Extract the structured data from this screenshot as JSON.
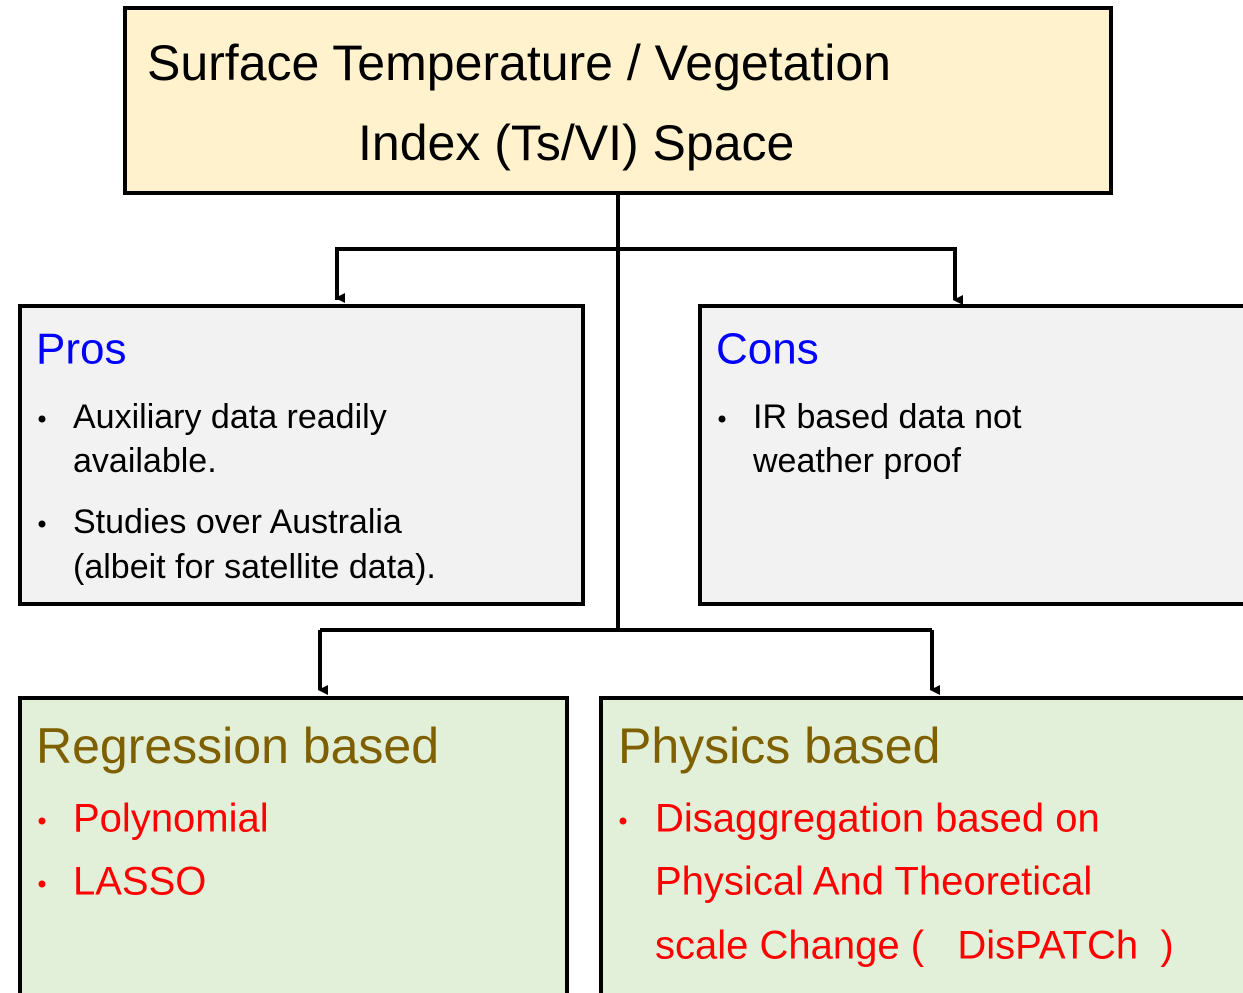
{
  "root": {
    "title": [
      "Surface Temperature / Vegetation",
      "Index (Ts/VI) Space"
    ]
  },
  "pros": {
    "title": "Pros",
    "items": [
      [
        "Auxiliary data readily",
        "available."
      ],
      [
        "Studies over Australia",
        "(albeit for satellite data)."
      ]
    ]
  },
  "cons": {
    "title": "Cons",
    "items": [
      [
        "IR based data not",
        "weather proof"
      ]
    ]
  },
  "regression": {
    "title": "Regression based",
    "items": [
      [
        "Polynomial"
      ],
      [
        "LASSO"
      ]
    ]
  },
  "physics": {
    "title": "Physics based",
    "items": [
      [
        "Disaggregation based on",
        "Physical And Theoretical",
        "scale Change (   DisPATCh  )"
      ]
    ]
  }
}
